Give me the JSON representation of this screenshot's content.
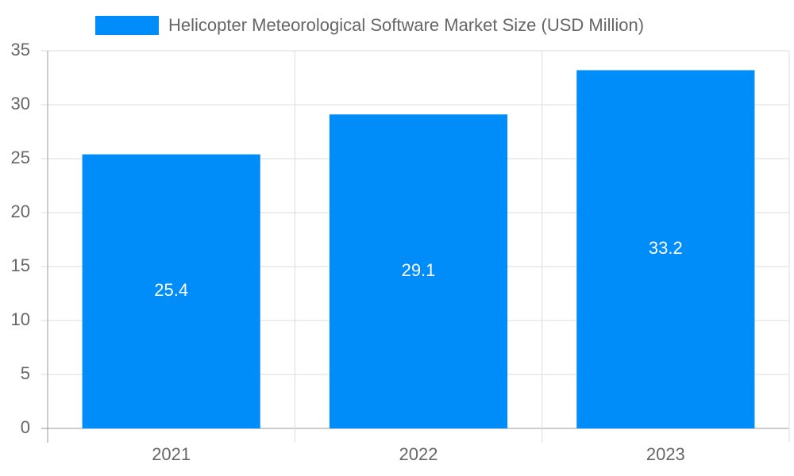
{
  "chart_data": {
    "type": "bar",
    "categories": [
      "2021",
      "2022",
      "2023"
    ],
    "series": [
      {
        "name": "Helicopter Meteorological Software Market Size (USD Million)",
        "color": "#008cf9",
        "values": [
          25.4,
          29.1,
          33.2
        ]
      }
    ],
    "ylim": [
      0,
      35
    ],
    "yticks": [
      0,
      5,
      10,
      15,
      20,
      25,
      30,
      35
    ],
    "grid": true,
    "legend": "top",
    "value_label_color": "#ffffff"
  }
}
